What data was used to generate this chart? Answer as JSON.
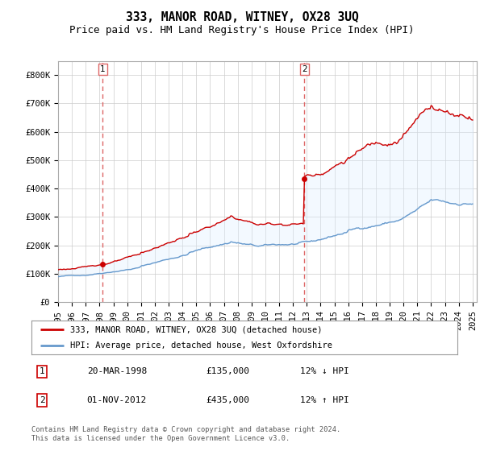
{
  "title": "333, MANOR ROAD, WITNEY, OX28 3UQ",
  "subtitle": "Price paid vs. HM Land Registry's House Price Index (HPI)",
  "ylim": [
    0,
    850000
  ],
  "yticks": [
    0,
    100000,
    200000,
    300000,
    400000,
    500000,
    600000,
    700000,
    800000
  ],
  "ytick_labels": [
    "£0",
    "£100K",
    "£200K",
    "£300K",
    "£400K",
    "£500K",
    "£600K",
    "£700K",
    "£800K"
  ],
  "sale1_date": 1998.22,
  "sale1_price": 135000,
  "sale2_date": 2012.83,
  "sale2_price": 435000,
  "red_line_color": "#cc0000",
  "blue_line_color": "#6699cc",
  "fill_color": "#ddeeff",
  "marker_color": "#cc0000",
  "vline_color": "#dd6666",
  "background_color": "#ffffff",
  "grid_color": "#cccccc",
  "legend_label_red": "333, MANOR ROAD, WITNEY, OX28 3UQ (detached house)",
  "legend_label_blue": "HPI: Average price, detached house, West Oxfordshire",
  "table_row1": [
    "1",
    "20-MAR-1998",
    "£135,000",
    "12% ↓ HPI"
  ],
  "table_row2": [
    "2",
    "01-NOV-2012",
    "£435,000",
    "12% ↑ HPI"
  ],
  "footer": "Contains HM Land Registry data © Crown copyright and database right 2024.\nThis data is licensed under the Open Government Licence v3.0.",
  "title_fontsize": 10.5,
  "subtitle_fontsize": 9,
  "tick_fontsize": 7.5,
  "x_start": 1995,
  "x_end": 2025.3,
  "x_ticks": [
    1995,
    1996,
    1997,
    1998,
    1999,
    2000,
    2001,
    2002,
    2003,
    2004,
    2005,
    2006,
    2007,
    2008,
    2009,
    2010,
    2011,
    2012,
    2013,
    2014,
    2015,
    2016,
    2017,
    2018,
    2019,
    2020,
    2021,
    2022,
    2023,
    2024,
    2025
  ]
}
